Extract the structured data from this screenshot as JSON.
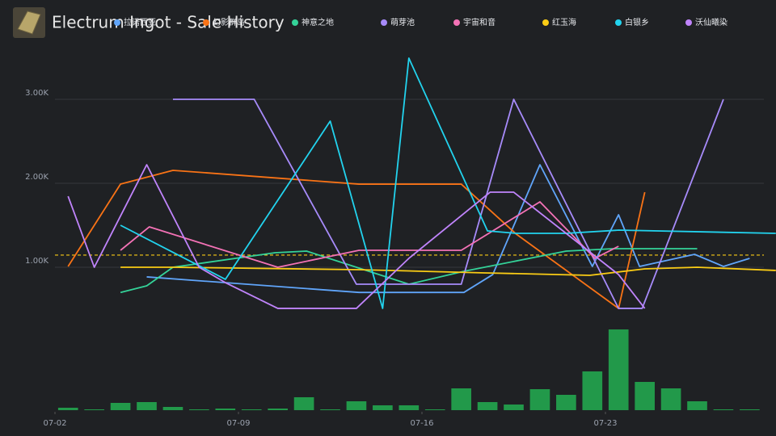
{
  "chart_data": {
    "type": "line",
    "title": "Electrum Ingot - Sale History",
    "xlim": [
      1.5,
      29.5
    ],
    "xticks": [
      {
        "value": 2,
        "label": "07-02"
      },
      {
        "value": 9,
        "label": "07-09"
      },
      {
        "value": 16,
        "label": "07-16"
      },
      {
        "value": 23,
        "label": "07-23"
      }
    ],
    "ylim": [
      0,
      3600
    ],
    "yticks": [
      {
        "value": 1000,
        "label": "1.00K"
      },
      {
        "value": 2000,
        "label": "2.00K"
      },
      {
        "value": 3000,
        "label": "3.00K"
      }
    ],
    "grid": true,
    "average": {
      "value": 1145,
      "color": "#facc15"
    },
    "series": [
      {
        "name": "拉诺西亚",
        "color": "#60a5fa",
        "x": [
          5.5,
          13.6,
          17.6,
          18.7,
          20.5,
          22.5,
          23.5,
          24.3,
          26.4,
          27.5,
          28.5
        ],
        "values": [
          885,
          700,
          700,
          913,
          2221,
          1010,
          1625,
          1010,
          1154,
          1010,
          1106
        ]
      },
      {
        "name": "幻影群岛",
        "color": "#f97316",
        "x": [
          2.5,
          4.5,
          6.5,
          13.6,
          17.5,
          19.6,
          23.5,
          24.5
        ],
        "values": [
          1010,
          1990,
          2154,
          1990,
          1990,
          1394,
          510,
          1894
        ]
      },
      {
        "name": "神意之地",
        "color": "#34d399",
        "x": [
          4.5,
          5.5,
          6.5,
          10.4,
          11.6,
          13.5,
          15.5,
          17.6,
          21.5,
          23.3,
          26.5
        ],
        "values": [
          700,
          779,
          1000,
          1173,
          1192,
          1000,
          798,
          952,
          1192,
          1221,
          1221
        ]
      },
      {
        "name": "萌芽池",
        "color": "#a78bfa",
        "x": [
          6.5,
          9.6,
          13.5,
          17.5,
          19.5,
          23.5,
          24.4,
          27.5
        ],
        "values": [
          3000,
          3000,
          798,
          798,
          3000,
          510,
          510,
          3000
        ]
      },
      {
        "name": "宇宙和音",
        "color": "#f472b6",
        "x": [
          4.5,
          5.6,
          10.5,
          13.6,
          17.5,
          20.5,
          22.6,
          23.5
        ],
        "values": [
          1202,
          1481,
          1000,
          1202,
          1202,
          1779,
          1106,
          1250
        ]
      },
      {
        "name": "红玉海",
        "color": "#facc15",
        "x": [
          4.5,
          6.5,
          13.6,
          18.4,
          22.4,
          24.5,
          26.5,
          29.5
        ],
        "values": [
          1000,
          1000,
          971,
          933,
          904,
          981,
          1000,
          962
        ]
      },
      {
        "name": "白银乡",
        "color": "#22d3ee",
        "x": [
          4.5,
          8.5,
          12.5,
          14.5,
          15.5,
          18.5,
          19.6,
          21.5,
          23.5,
          29.5
        ],
        "values": [
          1500,
          856,
          2740,
          510,
          3490,
          1433,
          1404,
          1404,
          1442,
          1404
        ]
      },
      {
        "name": "沃仙曦染",
        "color": "#c084fc",
        "x": [
          2.5,
          3.5,
          5.5,
          7.5,
          8.5,
          10.5,
          13.5,
          15.5,
          18.6,
          19.5,
          23.5,
          24.5
        ],
        "values": [
          1846,
          1000,
          2221,
          1000,
          817,
          510,
          510,
          1106,
          1894,
          1894,
          913,
          510
        ]
      }
    ],
    "volume": {
      "color": "#22994a",
      "y2lim": [
        0,
        100
      ],
      "x": [
        2.5,
        3.5,
        4.5,
        5.5,
        6.5,
        7.5,
        8.5,
        9.5,
        10.5,
        11.5,
        12.5,
        13.5,
        14.5,
        15.5,
        16.5,
        17.5,
        18.5,
        19.5,
        20.5,
        21.5,
        22.5,
        23.5,
        24.5,
        25.5,
        26.5,
        27.5,
        28.5
      ],
      "values": [
        3,
        1,
        9,
        10,
        4,
        1,
        2,
        1,
        2,
        16,
        1,
        11,
        6,
        6,
        1,
        27,
        10,
        7,
        26,
        19,
        48,
        100,
        35,
        27,
        11,
        1,
        1
      ]
    }
  }
}
